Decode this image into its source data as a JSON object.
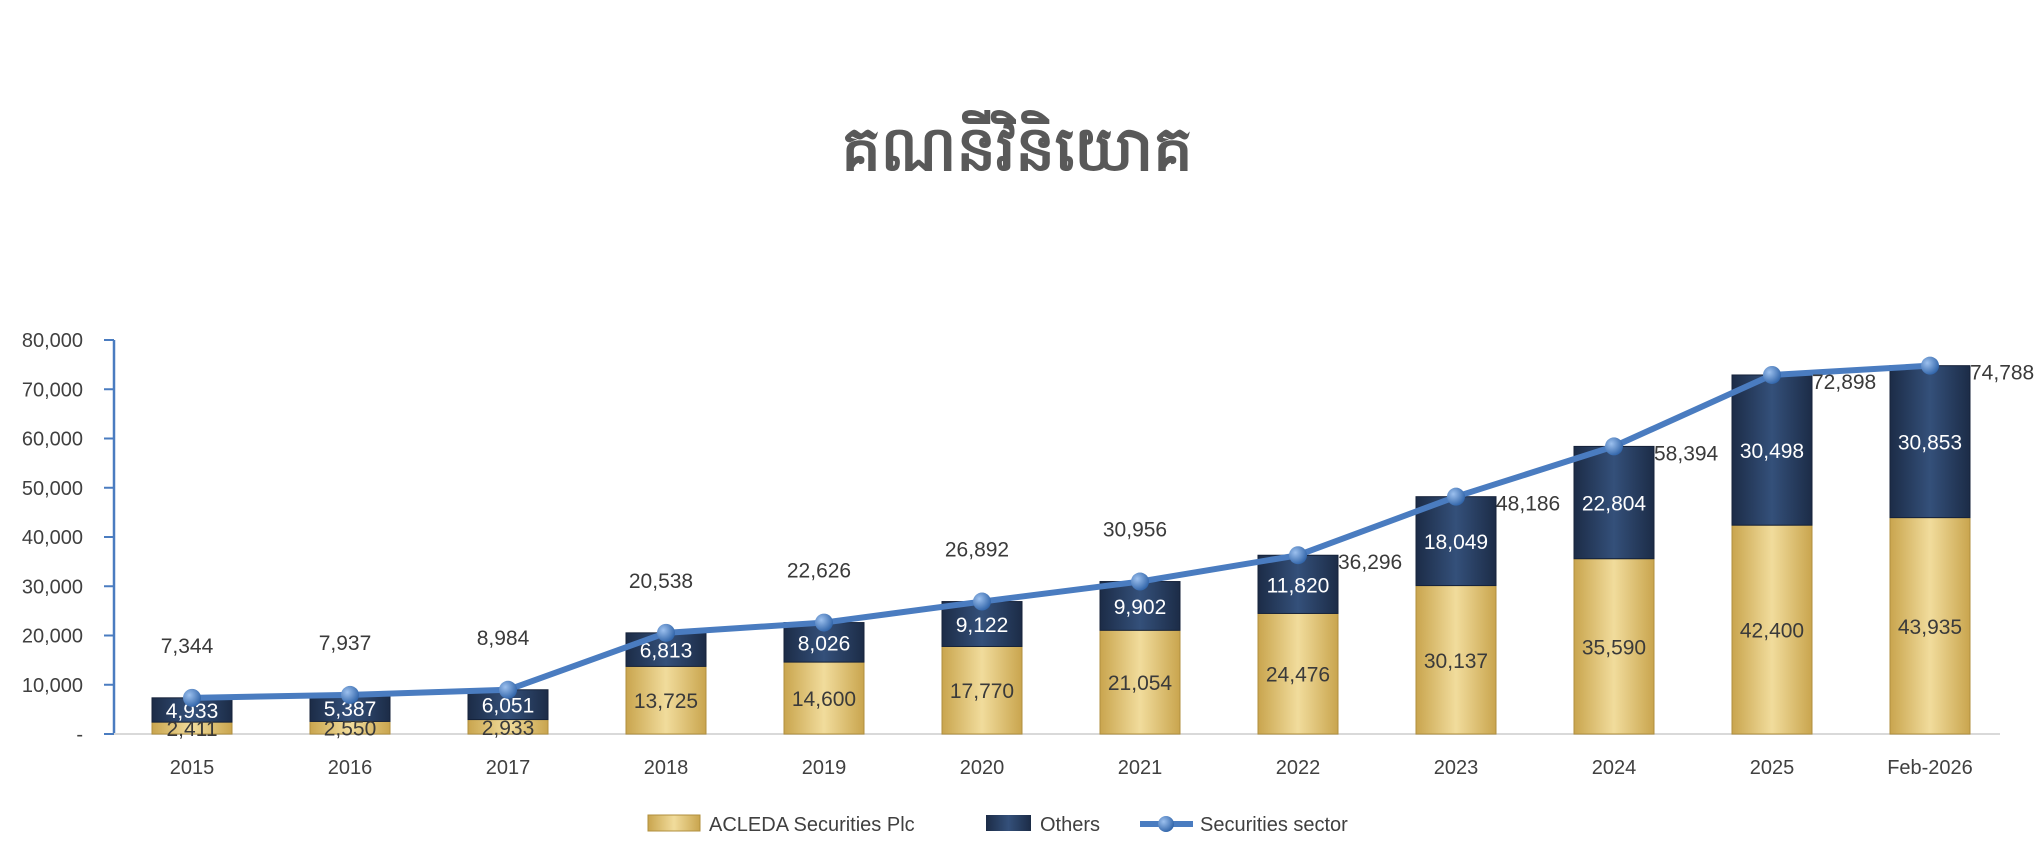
{
  "chart_data": {
    "type": "bar",
    "stacked": true,
    "title": "គណនីវិនិយោគ",
    "categories": [
      "2015",
      "2016",
      "2017",
      "2018",
      "2019",
      "2020",
      "2021",
      "2022",
      "2023",
      "2024",
      "2025",
      "Feb-2026"
    ],
    "series": [
      {
        "name": "ACLEDA Securities Plc",
        "type": "bar",
        "color": "#e3c471",
        "values": [
          2411,
          2550,
          2933,
          13725,
          14600,
          17770,
          21054,
          24476,
          30137,
          35590,
          42400,
          43935
        ]
      },
      {
        "name": "Others",
        "type": "bar",
        "color": "#283c5c",
        "values": [
          4933,
          5387,
          6051,
          6813,
          8026,
          9122,
          9902,
          11820,
          18049,
          22804,
          30498,
          30853
        ]
      },
      {
        "name": "Securities sector",
        "type": "line",
        "color": "#4a7cc0",
        "values": [
          7344,
          7937,
          8984,
          20538,
          22626,
          26892,
          30956,
          36296,
          48186,
          58394,
          72898,
          74788
        ]
      }
    ],
    "ylim": [
      0,
      80000
    ],
    "yticks": [
      "-",
      "10,000",
      "20,000",
      "30,000",
      "40,000",
      "50,000",
      "60,000",
      "70,000",
      "80,000"
    ],
    "grid": false,
    "legend": "bottom"
  }
}
